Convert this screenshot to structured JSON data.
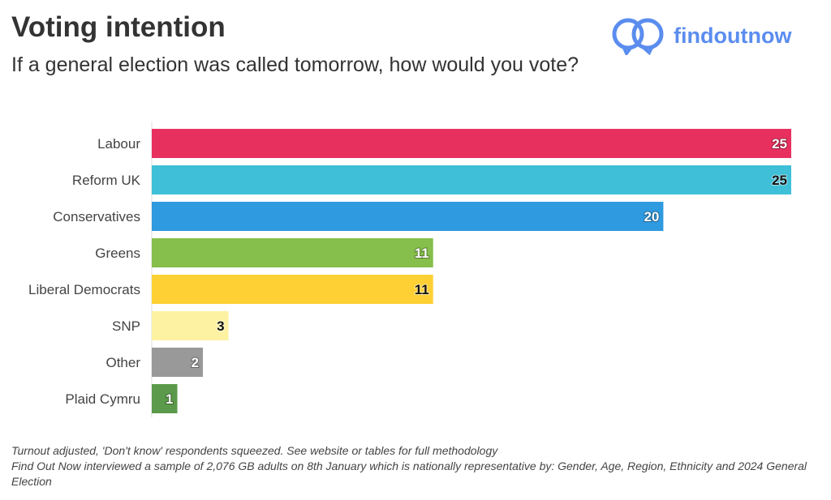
{
  "title": "Voting intention",
  "subtitle": "If a general election was called tomorrow, how would you vote?",
  "logo": "findoutnow",
  "chart_data": {
    "type": "bar",
    "orientation": "horizontal",
    "categories": [
      "Labour",
      "Reform UK",
      "Conservatives",
      "Greens",
      "Liberal Democrats",
      "SNP",
      "Other",
      "Plaid Cymru"
    ],
    "values": [
      25,
      25,
      20,
      11,
      11,
      3,
      2,
      1
    ],
    "colors": [
      "#e8305e",
      "#40c0d8",
      "#2f9ae0",
      "#86bf4b",
      "#ffd034",
      "#fdf2a2",
      "#999999",
      "#5a9a4a"
    ],
    "label_colors": [
      "#ffffff",
      "#111111",
      "#ffffff",
      "#ffffff",
      "#111111",
      "#111111",
      "#ffffff",
      "#ffffff"
    ],
    "xlim": [
      0,
      25
    ]
  },
  "notes": [
    "Turnout adjusted, 'Don't know' respondents squeezed. See website or tables for full methodology",
    "Find Out Now interviewed a sample of 2,076 GB adults on 8th January which is nationally representative by: Gender, Age, Region, Ethnicity and 2024 General Election"
  ]
}
